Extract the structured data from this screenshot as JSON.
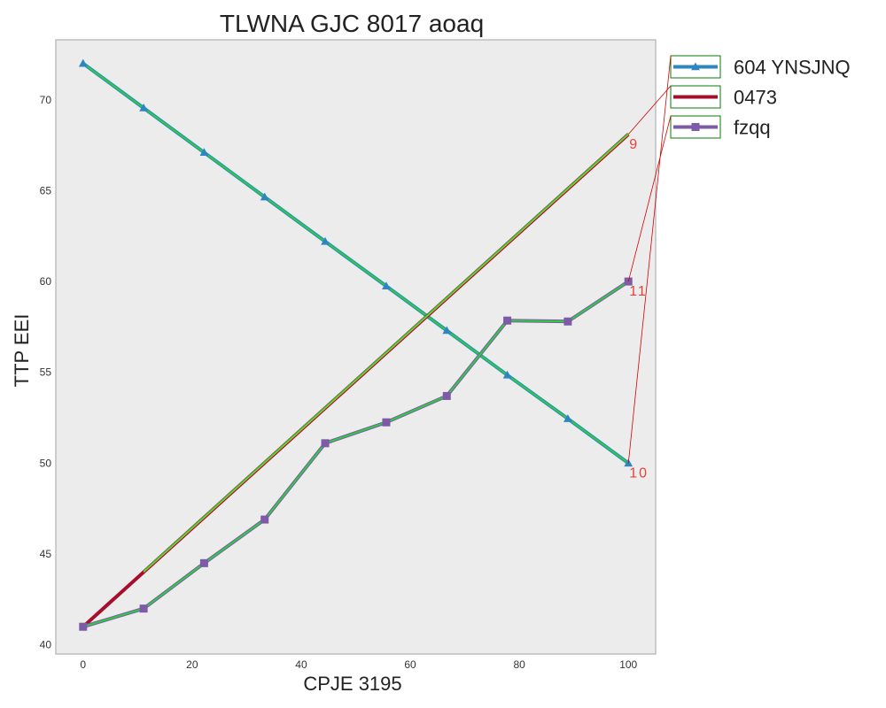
{
  "chart_data": {
    "type": "line",
    "title": "TLWNA GJC 8017 aoaq",
    "xlabel": "CPJE 3195",
    "ylabel": "TTP EEI",
    "xlim": [
      -5,
      105
    ],
    "ylim": [
      39.5,
      73.3
    ],
    "xticks": [
      0,
      20,
      40,
      60,
      80,
      100
    ],
    "yticks": [
      40,
      45,
      50,
      55,
      60,
      65,
      70
    ],
    "grid": false,
    "legend_position": "outside-top-right",
    "series": [
      {
        "name": "604 YNSJNQ",
        "color": "#2e86c1",
        "marker": "triangle",
        "x": [
          0,
          11.1,
          22.2,
          33.3,
          44.4,
          55.6,
          66.7,
          77.8,
          88.9,
          100
        ],
        "y": [
          72.0,
          69.55,
          67.1,
          64.65,
          62.2,
          59.75,
          57.3,
          54.85,
          52.45,
          50.0
        ]
      },
      {
        "name": "0473",
        "color": "#a50f2d",
        "marker": "none",
        "x": [
          0,
          100
        ],
        "y": [
          41.0,
          68.1
        ]
      },
      {
        "name": "fzqq",
        "color": "#7d5ba6",
        "marker": "square",
        "x": [
          0,
          11.1,
          22.2,
          33.3,
          44.4,
          55.6,
          66.7,
          77.8,
          88.9,
          100
        ],
        "y": [
          41.0,
          42.0,
          44.5,
          46.9,
          51.1,
          52.25,
          53.7,
          57.85,
          57.8,
          60.0
        ]
      }
    ],
    "annotations": [
      {
        "text": "9",
        "x": 100,
        "y": 68.1,
        "series": "0473"
      },
      {
        "text": "11",
        "x": 100,
        "y": 60.0,
        "series": "fzqq"
      },
      {
        "text": "10",
        "x": 100,
        "y": 50.0,
        "series": "604 YNSJNQ"
      }
    ]
  }
}
